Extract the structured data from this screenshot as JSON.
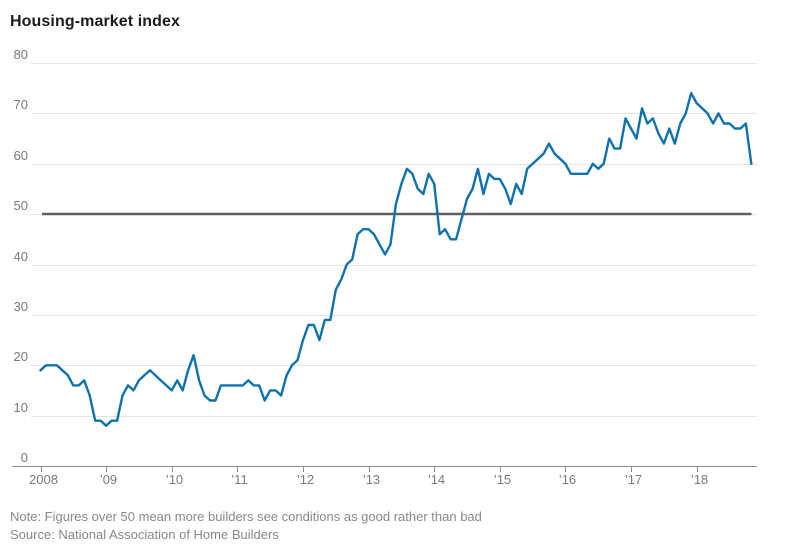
{
  "chart_data": {
    "type": "line",
    "title": "Housing-market index",
    "note": "Note: Figures over 50 mean more builders see conditions as good rather than bad",
    "source": "Source: National Association of Home Builders",
    "xlabel": "",
    "ylabel": "",
    "ylim": [
      0,
      80
    ],
    "y_ticks": [
      0,
      10,
      20,
      30,
      40,
      50,
      60,
      70,
      80
    ],
    "x_tick_labels": [
      "2008",
      "’09",
      "’10",
      "’11",
      "’12",
      "’13",
      "’14",
      "’15",
      "’16",
      "’17",
      "’18"
    ],
    "x_frequency": "monthly",
    "x_range": "Jan 2008 – Nov 2018",
    "grid": "horizontal",
    "legend": "none",
    "refline": {
      "value": 50
    },
    "series": [
      {
        "name": "Housing-market index",
        "values": [
          19,
          20,
          20,
          20,
          19,
          18,
          16,
          16,
          17,
          14,
          9,
          9,
          8,
          9,
          9,
          14,
          16,
          15,
          17,
          18,
          19,
          18,
          17,
          16,
          15,
          17,
          15,
          19,
          22,
          17,
          14,
          13,
          13,
          16,
          16,
          16,
          16,
          16,
          17,
          16,
          16,
          13,
          15,
          15,
          14,
          18,
          20,
          21,
          25,
          28,
          28,
          25,
          29,
          29,
          35,
          37,
          40,
          41,
          46,
          47,
          47,
          46,
          44,
          42,
          44,
          52,
          56,
          59,
          58,
          55,
          54,
          58,
          56,
          46,
          47,
          45,
          45,
          49,
          53,
          55,
          59,
          54,
          58,
          57,
          57,
          55,
          52,
          56,
          54,
          59,
          60,
          61,
          62,
          64,
          62,
          61,
          60,
          58,
          58,
          58,
          58,
          60,
          59,
          60,
          65,
          63,
          63,
          69,
          67,
          65,
          71,
          68,
          69,
          66,
          64,
          67,
          64,
          68,
          70,
          74,
          72,
          71,
          70,
          68,
          70,
          68,
          68,
          67,
          67,
          68,
          60
        ]
      }
    ],
    "colors": {
      "line": "#1072ac",
      "refline": "#606060",
      "grid": "#e4e4e4",
      "axis": "#919191",
      "tick_label": "#7a7a7a",
      "title": "#1b1b1b",
      "note": "#898989"
    }
  }
}
